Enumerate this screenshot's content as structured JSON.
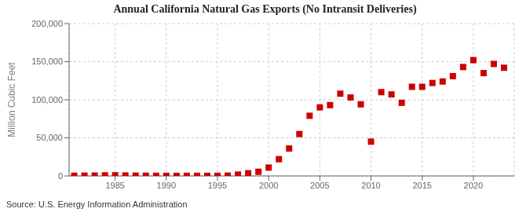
{
  "chart_data": {
    "type": "scatter",
    "title": "Annual California Natural Gas Exports (No Intransit Deliveries)",
    "y_label": "Million Cubic Feet",
    "annotations": [
      "Source: U.S. Energy Information Administration"
    ],
    "x": [
      1981,
      1982,
      1983,
      1984,
      1985,
      1986,
      1987,
      1988,
      1989,
      1990,
      1991,
      1992,
      1993,
      1994,
      1995,
      1996,
      1997,
      1998,
      1999,
      2000,
      2001,
      2002,
      2003,
      2004,
      2005,
      2006,
      2007,
      2008,
      2009,
      2010,
      2011,
      2012,
      2013,
      2014,
      2015,
      2016,
      2017,
      2018,
      2019,
      2020,
      2021,
      2022,
      2023
    ],
    "values": [
      300,
      400,
      500,
      800,
      900,
      600,
      400,
      300,
      200,
      150,
      150,
      150,
      150,
      150,
      200,
      400,
      1800,
      3500,
      5500,
      11000,
      22000,
      36000,
      55000,
      79000,
      90000,
      93000,
      108000,
      103000,
      94000,
      45000,
      110000,
      107000,
      96000,
      117000,
      117000,
      122000,
      124000,
      131000,
      143000,
      152000,
      135000,
      147000,
      142000
    ],
    "color": "#cc0000",
    "marker": "square",
    "xlim": [
      1980.5,
      2024
    ],
    "ylim": [
      0,
      200000
    ],
    "xticks": [
      1985,
      1990,
      1995,
      2000,
      2005,
      2010,
      2015,
      2020
    ],
    "yticks": [
      0,
      {
        "value": 50000,
        "label": "50,000"
      },
      {
        "value": 100000,
        "label": "100,000"
      },
      {
        "value": 150000,
        "label": "150,000"
      },
      {
        "value": 200000,
        "label": "200,000"
      }
    ],
    "grid": true
  }
}
